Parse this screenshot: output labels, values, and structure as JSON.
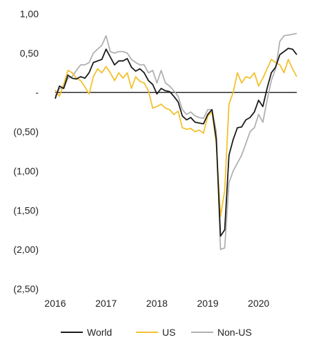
{
  "chart_data": {
    "type": "line",
    "title": "",
    "xlabel": "",
    "ylabel": "",
    "ylim": [
      -2.5,
      1.0
    ],
    "xlim": [
      2016.0,
      2020.75
    ],
    "y_ticks": [
      1.0,
      0.5,
      0.0,
      -0.5,
      -1.0,
      -1.5,
      -2.0,
      -2.5
    ],
    "y_tick_labels": [
      "1,00",
      "0,50",
      "-",
      "(0,50)",
      "(1,00)",
      "(1,50)",
      "(2,00)",
      "(2,50)"
    ],
    "x_ticks": [
      2016,
      2017,
      2018,
      2019,
      2020
    ],
    "x_tick_labels": [
      "2016",
      "2017",
      "2018",
      "2019",
      "2020"
    ],
    "grid": false,
    "legend_position": "bottom",
    "series": [
      {
        "name": "World",
        "color": "#1a1a1a",
        "x": [
          2016.0,
          2016.083,
          2016.167,
          2016.25,
          2016.333,
          2016.417,
          2016.5,
          2016.583,
          2016.667,
          2016.75,
          2016.833,
          2016.917,
          2017.0,
          2017.083,
          2017.167,
          2017.25,
          2017.333,
          2017.417,
          2017.5,
          2017.583,
          2017.667,
          2017.75,
          2017.833,
          2017.917,
          2018.0,
          2018.083,
          2018.167,
          2018.25,
          2018.333,
          2018.417,
          2018.5,
          2018.583,
          2018.667,
          2018.75,
          2018.833,
          2018.917,
          2019.0,
          2019.083,
          2019.167,
          2019.25,
          2019.333,
          2019.417,
          2019.5,
          2019.583,
          2019.667,
          2019.75,
          2019.833,
          2019.917,
          2020.0,
          2020.083,
          2020.167,
          2020.25,
          2020.333,
          2020.417,
          2020.5,
          2020.583,
          2020.667,
          2020.75
        ],
        "values": [
          -0.08,
          0.08,
          0.05,
          0.22,
          0.18,
          0.17,
          0.2,
          0.18,
          0.25,
          0.38,
          0.4,
          0.42,
          0.55,
          0.45,
          0.35,
          0.4,
          0.4,
          0.43,
          0.32,
          0.27,
          0.3,
          0.25,
          0.15,
          0.1,
          -0.02,
          0.05,
          0.02,
          0.01,
          -0.05,
          -0.12,
          -0.3,
          -0.35,
          -0.32,
          -0.38,
          -0.39,
          -0.4,
          -0.28,
          -0.22,
          -0.6,
          -1.83,
          -1.75,
          -0.8,
          -0.6,
          -0.45,
          -0.44,
          -0.35,
          -0.32,
          -0.25,
          -0.1,
          -0.18,
          0.05,
          0.25,
          0.32,
          0.48,
          0.52,
          0.56,
          0.55,
          0.48
        ]
      },
      {
        "name": "US",
        "color": "#f2c12e",
        "x": [
          2016.0,
          2016.083,
          2016.167,
          2016.25,
          2016.333,
          2016.417,
          2016.5,
          2016.583,
          2016.667,
          2016.75,
          2016.833,
          2016.917,
          2017.0,
          2017.083,
          2017.167,
          2017.25,
          2017.333,
          2017.417,
          2017.5,
          2017.583,
          2017.667,
          2017.75,
          2017.833,
          2017.917,
          2018.0,
          2018.083,
          2018.167,
          2018.25,
          2018.333,
          2018.417,
          2018.5,
          2018.583,
          2018.667,
          2018.75,
          2018.833,
          2018.917,
          2019.0,
          2019.083,
          2019.167,
          2019.25,
          2019.333,
          2019.417,
          2019.5,
          2019.583,
          2019.667,
          2019.75,
          2019.833,
          2019.917,
          2020.0,
          2020.083,
          2020.167,
          2020.25,
          2020.333,
          2020.417,
          2020.5,
          2020.583,
          2020.667,
          2020.75
        ],
        "values": [
          0.03,
          -0.05,
          0.1,
          0.28,
          0.25,
          0.18,
          0.15,
          0.07,
          -0.02,
          0.2,
          0.3,
          0.25,
          0.33,
          0.25,
          0.15,
          0.25,
          0.18,
          0.25,
          0.05,
          0.2,
          0.14,
          0.12,
          0.02,
          -0.2,
          -0.18,
          -0.15,
          -0.2,
          -0.22,
          -0.28,
          -0.24,
          -0.45,
          -0.47,
          -0.46,
          -0.5,
          -0.48,
          -0.52,
          -0.3,
          -0.25,
          -0.65,
          -1.58,
          -1.25,
          -0.15,
          0.0,
          0.25,
          0.12,
          0.2,
          0.18,
          0.25,
          0.08,
          0.18,
          0.3,
          0.42,
          0.38,
          0.35,
          0.25,
          0.42,
          0.3,
          0.2
        ]
      },
      {
        "name": "Non-US",
        "color": "#b0b0b0",
        "x": [
          2016.0,
          2016.083,
          2016.167,
          2016.25,
          2016.333,
          2016.417,
          2016.5,
          2016.583,
          2016.667,
          2016.75,
          2016.833,
          2016.917,
          2017.0,
          2017.083,
          2017.167,
          2017.25,
          2017.333,
          2017.417,
          2017.5,
          2017.583,
          2017.667,
          2017.75,
          2017.833,
          2017.917,
          2018.0,
          2018.083,
          2018.167,
          2018.25,
          2018.333,
          2018.417,
          2018.5,
          2018.583,
          2018.667,
          2018.75,
          2018.833,
          2018.917,
          2019.0,
          2019.083,
          2019.167,
          2019.25,
          2019.333,
          2019.417,
          2019.5,
          2019.583,
          2019.667,
          2019.75,
          2019.833,
          2019.917,
          2020.0,
          2020.083,
          2020.167,
          2020.25,
          2020.333,
          2020.417,
          2020.5,
          2020.583,
          2020.667,
          2020.75
        ],
        "values": [
          -0.05,
          0.05,
          0.05,
          0.18,
          0.2,
          0.28,
          0.35,
          0.35,
          0.38,
          0.5,
          0.55,
          0.6,
          0.72,
          0.52,
          0.5,
          0.52,
          0.52,
          0.5,
          0.42,
          0.38,
          0.35,
          0.35,
          0.25,
          0.28,
          0.12,
          0.28,
          0.12,
          0.08,
          0.02,
          -0.05,
          -0.22,
          -0.28,
          -0.25,
          -0.3,
          -0.32,
          -0.33,
          -0.22,
          -0.22,
          -0.5,
          -2.0,
          -1.98,
          -1.15,
          -1.0,
          -0.9,
          -0.8,
          -0.65,
          -0.5,
          -0.45,
          -0.28,
          -0.38,
          -0.1,
          0.15,
          0.3,
          0.65,
          0.72,
          0.73,
          0.74,
          0.75
        ]
      }
    ]
  }
}
